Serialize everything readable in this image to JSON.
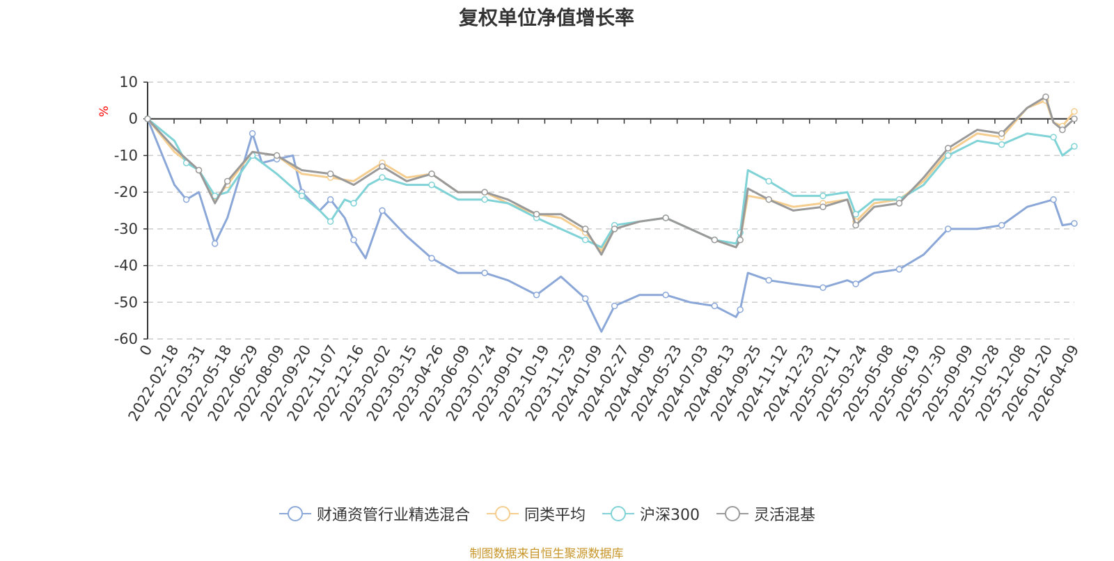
{
  "chart_data": {
    "type": "line",
    "title": "复权单位净值增长率",
    "ylabel": "%",
    "ylim": [
      -60,
      10
    ],
    "yticks": [
      10,
      0,
      -10,
      -20,
      -30,
      -40,
      -50,
      -60
    ],
    "x_start": "2022-01-04",
    "x_end": "2026-04-09",
    "xtick_labels": [
      "0",
      "2022-02-18",
      "2022-03-31",
      "2022-05-18",
      "2022-06-29",
      "2022-08-09",
      "2022-09-20",
      "2022-11-07",
      "2022-12-16",
      "2023-02-02",
      "2023-03-15",
      "2023-04-26",
      "2023-06-09",
      "2023-07-24",
      "2023-09-01",
      "2023-10-19",
      "2023-11-29",
      "2024-01-09",
      "2024-02-27",
      "2024-04-09",
      "2024-05-23",
      "2024-07-03",
      "2024-08-13",
      "2024-09-25",
      "2024-11-12",
      "2024-12-23",
      "2025-02-11",
      "2025-03-24",
      "2025-05-08",
      "2025-06-19",
      "2025-07-30",
      "2025-09-09",
      "2025-10-28",
      "2025-12-08",
      "2026-01-20",
      "2026-04-09"
    ],
    "grid": true,
    "legend_position": "bottom",
    "series": [
      {
        "name": "财通资管行业精选混合",
        "color": "#8aa7d8",
        "x": [
          "2022-01-04",
          "2022-02-18",
          "2022-03-10",
          "2022-03-31",
          "2022-04-27",
          "2022-05-18",
          "2022-06-29",
          "2022-07-15",
          "2022-08-09",
          "2022-09-05",
          "2022-09-20",
          "2022-10-20",
          "2022-11-07",
          "2022-12-01",
          "2022-12-16",
          "2023-01-05",
          "2023-02-02",
          "2023-03-15",
          "2023-04-26",
          "2023-06-09",
          "2023-07-24",
          "2023-09-01",
          "2023-10-19",
          "2023-11-29",
          "2024-01-09",
          "2024-02-05",
          "2024-02-27",
          "2024-04-09",
          "2024-05-23",
          "2024-07-03",
          "2024-08-13",
          "2024-09-18",
          "2024-09-25",
          "2024-10-08",
          "2024-11-12",
          "2024-12-23",
          "2025-02-11",
          "2025-03-24",
          "2025-04-07",
          "2025-05-08",
          "2025-06-19",
          "2025-07-30",
          "2025-09-09",
          "2025-10-28",
          "2025-12-08",
          "2026-01-20",
          "2026-03-05",
          "2026-03-20",
          "2026-04-09"
        ],
        "y": [
          0,
          -18,
          -22,
          -20,
          -34,
          -27,
          -4,
          -12,
          -11,
          -10,
          -20,
          -25,
          -22,
          -27,
          -33,
          -38,
          -25,
          -32,
          -38,
          -42,
          -42,
          -44,
          -48,
          -43,
          -49,
          -58,
          -51,
          -48,
          -48,
          -50,
          -51,
          -54,
          -52,
          -42,
          -44,
          -45,
          -46,
          -44,
          -45,
          -42,
          -41,
          -37,
          -30,
          -30,
          -29,
          -24,
          -22,
          -29,
          -28.5
        ]
      },
      {
        "name": "同类平均",
        "color": "#f5cd8e",
        "x": [
          "2022-01-04",
          "2022-02-18",
          "2022-03-31",
          "2022-04-27",
          "2022-05-18",
          "2022-06-29",
          "2022-08-09",
          "2022-09-20",
          "2022-11-07",
          "2022-12-16",
          "2023-02-02",
          "2023-03-15",
          "2023-04-26",
          "2023-06-09",
          "2023-07-24",
          "2023-09-01",
          "2023-10-19",
          "2023-11-29",
          "2024-01-09",
          "2024-02-05",
          "2024-02-27",
          "2024-04-09",
          "2024-05-23",
          "2024-07-03",
          "2024-08-13",
          "2024-09-18",
          "2024-09-25",
          "2024-10-08",
          "2024-11-12",
          "2024-12-23",
          "2025-02-11",
          "2025-03-24",
          "2025-04-07",
          "2025-05-08",
          "2025-06-19",
          "2025-07-30",
          "2025-09-09",
          "2025-10-28",
          "2025-12-08",
          "2026-01-20",
          "2026-02-20",
          "2026-03-05",
          "2026-03-20",
          "2026-04-09"
        ],
        "y": [
          0,
          -9,
          -14,
          -22,
          -18,
          -9,
          -10,
          -15,
          -16,
          -17,
          -12,
          -16,
          -15,
          -20,
          -20,
          -23,
          -26,
          -27,
          -31,
          -36,
          -30,
          -28,
          -27,
          -30,
          -33,
          -35,
          -33,
          -21,
          -22,
          -24,
          -23,
          -22,
          -28,
          -23,
          -22,
          -17,
          -9,
          -4,
          -5,
          3,
          5,
          -1,
          -2,
          2
        ]
      },
      {
        "name": "沪深300",
        "color": "#7fd2d6",
        "x": [
          "2022-01-04",
          "2022-02-18",
          "2022-03-10",
          "2022-03-31",
          "2022-04-27",
          "2022-05-18",
          "2022-06-29",
          "2022-08-09",
          "2022-09-20",
          "2022-10-20",
          "2022-11-07",
          "2022-12-01",
          "2022-12-16",
          "2023-01-10",
          "2023-02-02",
          "2023-03-15",
          "2023-04-26",
          "2023-06-09",
          "2023-07-24",
          "2023-09-01",
          "2023-10-19",
          "2023-11-29",
          "2024-01-09",
          "2024-02-05",
          "2024-02-27",
          "2024-04-09",
          "2024-05-23",
          "2024-07-03",
          "2024-08-13",
          "2024-09-18",
          "2024-09-25",
          "2024-10-08",
          "2024-11-12",
          "2024-12-23",
          "2025-02-11",
          "2025-03-24",
          "2025-04-07",
          "2025-05-08",
          "2025-06-19",
          "2025-07-30",
          "2025-09-09",
          "2025-10-28",
          "2025-12-08",
          "2026-01-20",
          "2026-03-05",
          "2026-03-20",
          "2026-04-09"
        ],
        "y": [
          0,
          -6,
          -12,
          -14,
          -21,
          -20,
          -10,
          -15,
          -21,
          -25,
          -28,
          -22,
          -23,
          -18,
          -16,
          -18,
          -18,
          -22,
          -22,
          -23,
          -27,
          -30,
          -33,
          -35,
          -29,
          -28,
          -27,
          -30,
          -33,
          -34,
          -31,
          -14,
          -17,
          -21,
          -21,
          -20,
          -26,
          -22,
          -22,
          -18,
          -10,
          -6,
          -7,
          -4,
          -5,
          -10,
          -7.5
        ]
      },
      {
        "name": "灵活混基",
        "color": "#999999",
        "x": [
          "2022-01-04",
          "2022-02-18",
          "2022-03-31",
          "2022-04-27",
          "2022-05-18",
          "2022-06-29",
          "2022-08-09",
          "2022-09-20",
          "2022-11-07",
          "2022-12-16",
          "2023-02-02",
          "2023-03-15",
          "2023-04-26",
          "2023-06-09",
          "2023-07-24",
          "2023-09-01",
          "2023-10-19",
          "2023-11-29",
          "2024-01-09",
          "2024-02-05",
          "2024-02-27",
          "2024-04-09",
          "2024-05-23",
          "2024-07-03",
          "2024-08-13",
          "2024-09-18",
          "2024-09-25",
          "2024-10-08",
          "2024-11-12",
          "2024-12-23",
          "2025-02-11",
          "2025-03-24",
          "2025-04-07",
          "2025-05-08",
          "2025-06-19",
          "2025-07-30",
          "2025-09-09",
          "2025-10-28",
          "2025-12-08",
          "2026-01-20",
          "2026-02-20",
          "2026-03-05",
          "2026-03-20",
          "2026-04-09"
        ],
        "y": [
          0,
          -8,
          -14,
          -23,
          -17,
          -9,
          -10,
          -14,
          -15,
          -18,
          -13,
          -17,
          -15,
          -20,
          -20,
          -22,
          -26,
          -26,
          -30,
          -37,
          -30,
          -28,
          -27,
          -30,
          -33,
          -35,
          -33,
          -19,
          -22,
          -25,
          -24,
          -22,
          -29,
          -24,
          -23,
          -16,
          -8,
          -3,
          -4,
          3,
          6,
          -1,
          -3,
          0
        ]
      }
    ]
  },
  "source_note": "制图数据来自恒生聚源数据库"
}
